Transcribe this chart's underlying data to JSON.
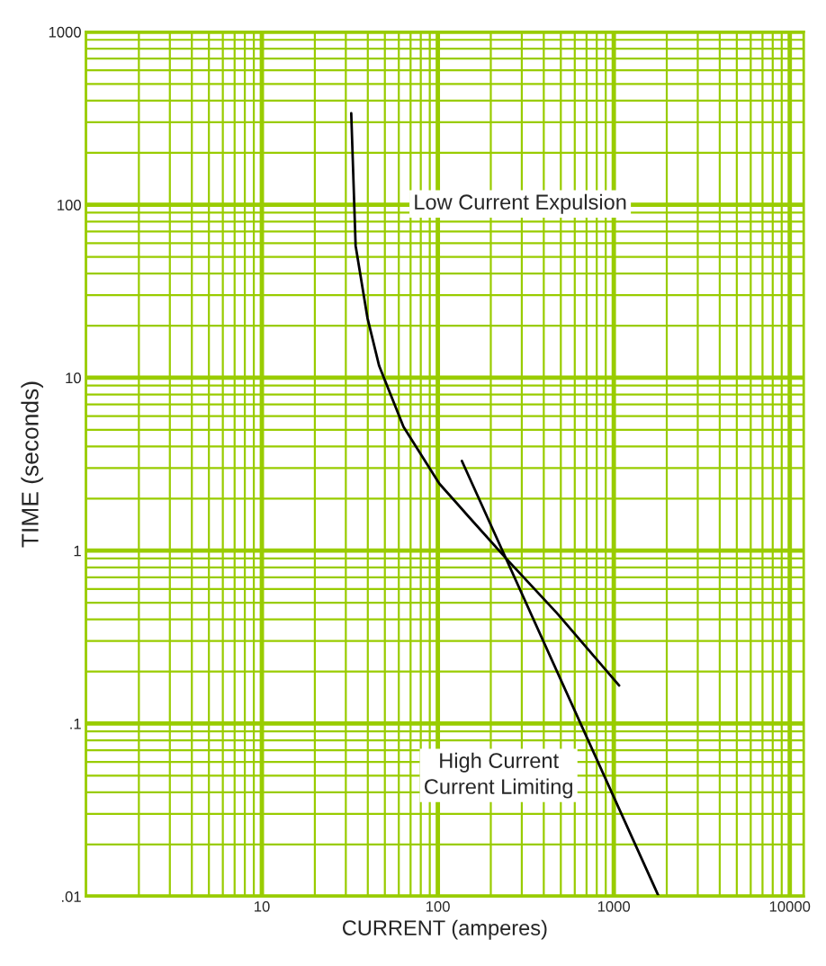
{
  "chart_data": {
    "type": "line",
    "xlabel": "CURRENT (amperes)",
    "ylabel": "TIME (seconds)",
    "log": "xy",
    "grid": true,
    "xlim": [
      1,
      12000
    ],
    "ylim": [
      0.01,
      1000
    ],
    "xticks": [
      {
        "value": 1,
        "label": null
      },
      {
        "value": 2,
        "label": null
      },
      {
        "value": 3,
        "label": null
      },
      {
        "value": 4,
        "label": null
      },
      {
        "value": 5,
        "label": null
      },
      {
        "value": 6,
        "label": null
      },
      {
        "value": 7,
        "label": null
      },
      {
        "value": 8,
        "label": null
      },
      {
        "value": 9,
        "label": null
      },
      10,
      {
        "value": 20,
        "label": null
      },
      {
        "value": 30,
        "label": null
      },
      {
        "value": 40,
        "label": null
      },
      {
        "value": 50,
        "label": null
      },
      {
        "value": 60,
        "label": null
      },
      {
        "value": 70,
        "label": null
      },
      {
        "value": 80,
        "label": null
      },
      {
        "value": 90,
        "label": null
      },
      100,
      {
        "value": 200,
        "label": null
      },
      {
        "value": 300,
        "label": null
      },
      {
        "value": 400,
        "label": null
      },
      {
        "value": 500,
        "label": null
      },
      {
        "value": 600,
        "label": null
      },
      {
        "value": 700,
        "label": null
      },
      {
        "value": 800,
        "label": null
      },
      {
        "value": 900,
        "label": null
      },
      1000,
      {
        "value": 2000,
        "label": null
      },
      {
        "value": 3000,
        "label": null
      },
      {
        "value": 4000,
        "label": null
      },
      {
        "value": 5000,
        "label": null
      },
      {
        "value": 6000,
        "label": null
      },
      {
        "value": 7000,
        "label": null
      },
      {
        "value": 8000,
        "label": null
      },
      {
        "value": 9000,
        "label": null
      },
      10000
    ],
    "yticks": [
      {
        "value": 0.01,
        "label": ".01"
      },
      {
        "value": 0.02,
        "label": null
      },
      {
        "value": 0.03,
        "label": null
      },
      {
        "value": 0.04,
        "label": null
      },
      {
        "value": 0.05,
        "label": null
      },
      {
        "value": 0.06,
        "label": null
      },
      {
        "value": 0.07,
        "label": null
      },
      {
        "value": 0.08,
        "label": null
      },
      {
        "value": 0.09,
        "label": null
      },
      {
        "value": 0.1,
        "label": ".1"
      },
      {
        "value": 0.2,
        "label": null
      },
      {
        "value": 0.3,
        "label": null
      },
      {
        "value": 0.4,
        "label": null
      },
      {
        "value": 0.5,
        "label": null
      },
      {
        "value": 0.6,
        "label": null
      },
      {
        "value": 0.7,
        "label": null
      },
      {
        "value": 0.8,
        "label": null
      },
      {
        "value": 0.9,
        "label": null
      },
      1,
      {
        "value": 2,
        "label": null
      },
      {
        "value": 3,
        "label": null
      },
      {
        "value": 4,
        "label": null
      },
      {
        "value": 5,
        "label": null
      },
      {
        "value": 6,
        "label": null
      },
      {
        "value": 7,
        "label": null
      },
      {
        "value": 8,
        "label": null
      },
      {
        "value": 9,
        "label": null
      },
      10,
      {
        "value": 20,
        "label": null
      },
      {
        "value": 30,
        "label": null
      },
      {
        "value": 40,
        "label": null
      },
      {
        "value": 50,
        "label": null
      },
      {
        "value": 60,
        "label": null
      },
      {
        "value": 70,
        "label": null
      },
      {
        "value": 80,
        "label": null
      },
      {
        "value": 90,
        "label": null
      },
      100,
      {
        "value": 200,
        "label": null
      },
      {
        "value": 300,
        "label": null
      },
      {
        "value": 400,
        "label": null
      },
      {
        "value": 500,
        "label": null
      },
      {
        "value": 600,
        "label": null
      },
      {
        "value": 700,
        "label": null
      },
      {
        "value": 800,
        "label": null
      },
      {
        "value": 900,
        "label": null
      },
      1000
    ],
    "series": [
      {
        "color": "#000000",
        "x": [
          32.2,
          34.1,
          39.8,
          46.4,
          63.8,
          102,
          149,
          251,
          475,
          1072
        ],
        "values": [
          338,
          58,
          22.2,
          11.7,
          5.2,
          2.44,
          1.58,
          0.875,
          0.435,
          0.166
        ]
      },
      {
        "color": "#000000",
        "x": [
          137,
          1800
        ],
        "values": [
          3.3,
          0.01
        ]
      }
    ],
    "annotations": [
      "Low Current Expulsion",
      "High Current\nCurrent Limiting"
    ]
  }
}
